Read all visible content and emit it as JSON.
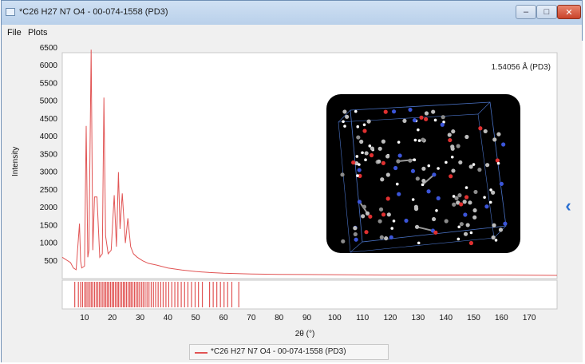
{
  "window": {
    "title": "*C26 H27 N7 O4 - 00-074-1558 (PD3)",
    "controls": {
      "minimize": "–",
      "maximize": "□",
      "close": "✕"
    }
  },
  "menu": {
    "file": "File",
    "plots": "Plots"
  },
  "plot": {
    "wavelength_label": "1.54056 Å (PD3)",
    "legend_label": "*C26 H27 N7 O4 - 00-074-1558 (PD3)"
  },
  "nav": {
    "chevron": "‹"
  },
  "colors": {
    "series": "#e15454",
    "background": "#ffffff",
    "accent": "#2a6fd1"
  },
  "icons": [
    "app-icon",
    "minimize-icon",
    "maximize-icon",
    "close-icon",
    "chevron-left-icon"
  ],
  "chart_data": {
    "type": "line",
    "xlabel": "2θ (°)",
    "ylabel": "Intensity",
    "xlim": [
      2,
      180
    ],
    "ylim": [
      0,
      6500
    ],
    "x_ticks": [
      10,
      20,
      30,
      40,
      50,
      60,
      70,
      80,
      90,
      100,
      110,
      120,
      130,
      140,
      150,
      160,
      170
    ],
    "y_ticks": [
      500,
      1000,
      1500,
      2000,
      2500,
      3000,
      3500,
      4000,
      4500,
      5000,
      5500,
      6000,
      6500
    ],
    "series": [
      {
        "name": "*C26 H27 N7 O4 - 00-074-1558 (PD3)",
        "x": [
          2,
          5,
          6,
          7,
          8.2,
          8.6,
          9,
          10,
          10.6,
          11.2,
          11.6,
          12.4,
          13.0,
          13.6,
          14.5,
          15.5,
          16.4,
          17.0,
          17.6,
          18.5,
          19.6,
          20.7,
          21.5,
          22.2,
          22.8,
          23.6,
          24.7,
          25.6,
          26.6,
          27.6,
          29,
          31,
          33,
          36,
          40,
          45,
          50,
          55,
          60,
          70,
          80,
          100,
          120,
          140,
          160,
          180
        ],
        "y": [
          600,
          450,
          300,
          250,
          1550,
          500,
          300,
          350,
          4300,
          600,
          800,
          6450,
          800,
          2300,
          2300,
          600,
          700,
          5100,
          1200,
          700,
          800,
          2350,
          900,
          3000,
          1400,
          2400,
          1000,
          1700,
          900,
          700,
          600,
          500,
          430,
          380,
          300,
          240,
          200,
          170,
          150,
          130,
          120,
          110,
          100,
          100,
          100,
          90
        ]
      }
    ],
    "tick_marks": [
      6.5,
      7.8,
      8.6,
      9.3,
      10.1,
      10.6,
      11.2,
      11.8,
      12.4,
      12.9,
      13.6,
      14.2,
      14.8,
      15.4,
      16.0,
      16.6,
      17.2,
      17.7,
      18.3,
      18.8,
      19.4,
      20.0,
      20.5,
      21.1,
      21.7,
      22.2,
      22.8,
      23.4,
      24.0,
      24.5,
      25.1,
      25.7,
      26.3,
      26.8,
      27.4,
      28.0,
      28.6,
      29.2,
      29.8,
      30.5,
      31.1,
      31.8,
      32.5,
      33.2,
      34.0,
      34.8,
      35.6,
      36.5,
      37.4,
      38.3,
      39.3,
      40.3,
      41.4,
      42.5,
      43.6,
      44.8,
      46.0,
      47.2,
      48.5,
      49.8,
      51.0,
      52.4,
      55.0,
      56.3,
      57.6,
      58.9,
      60.2,
      61.5,
      63.0,
      65.5
    ]
  }
}
